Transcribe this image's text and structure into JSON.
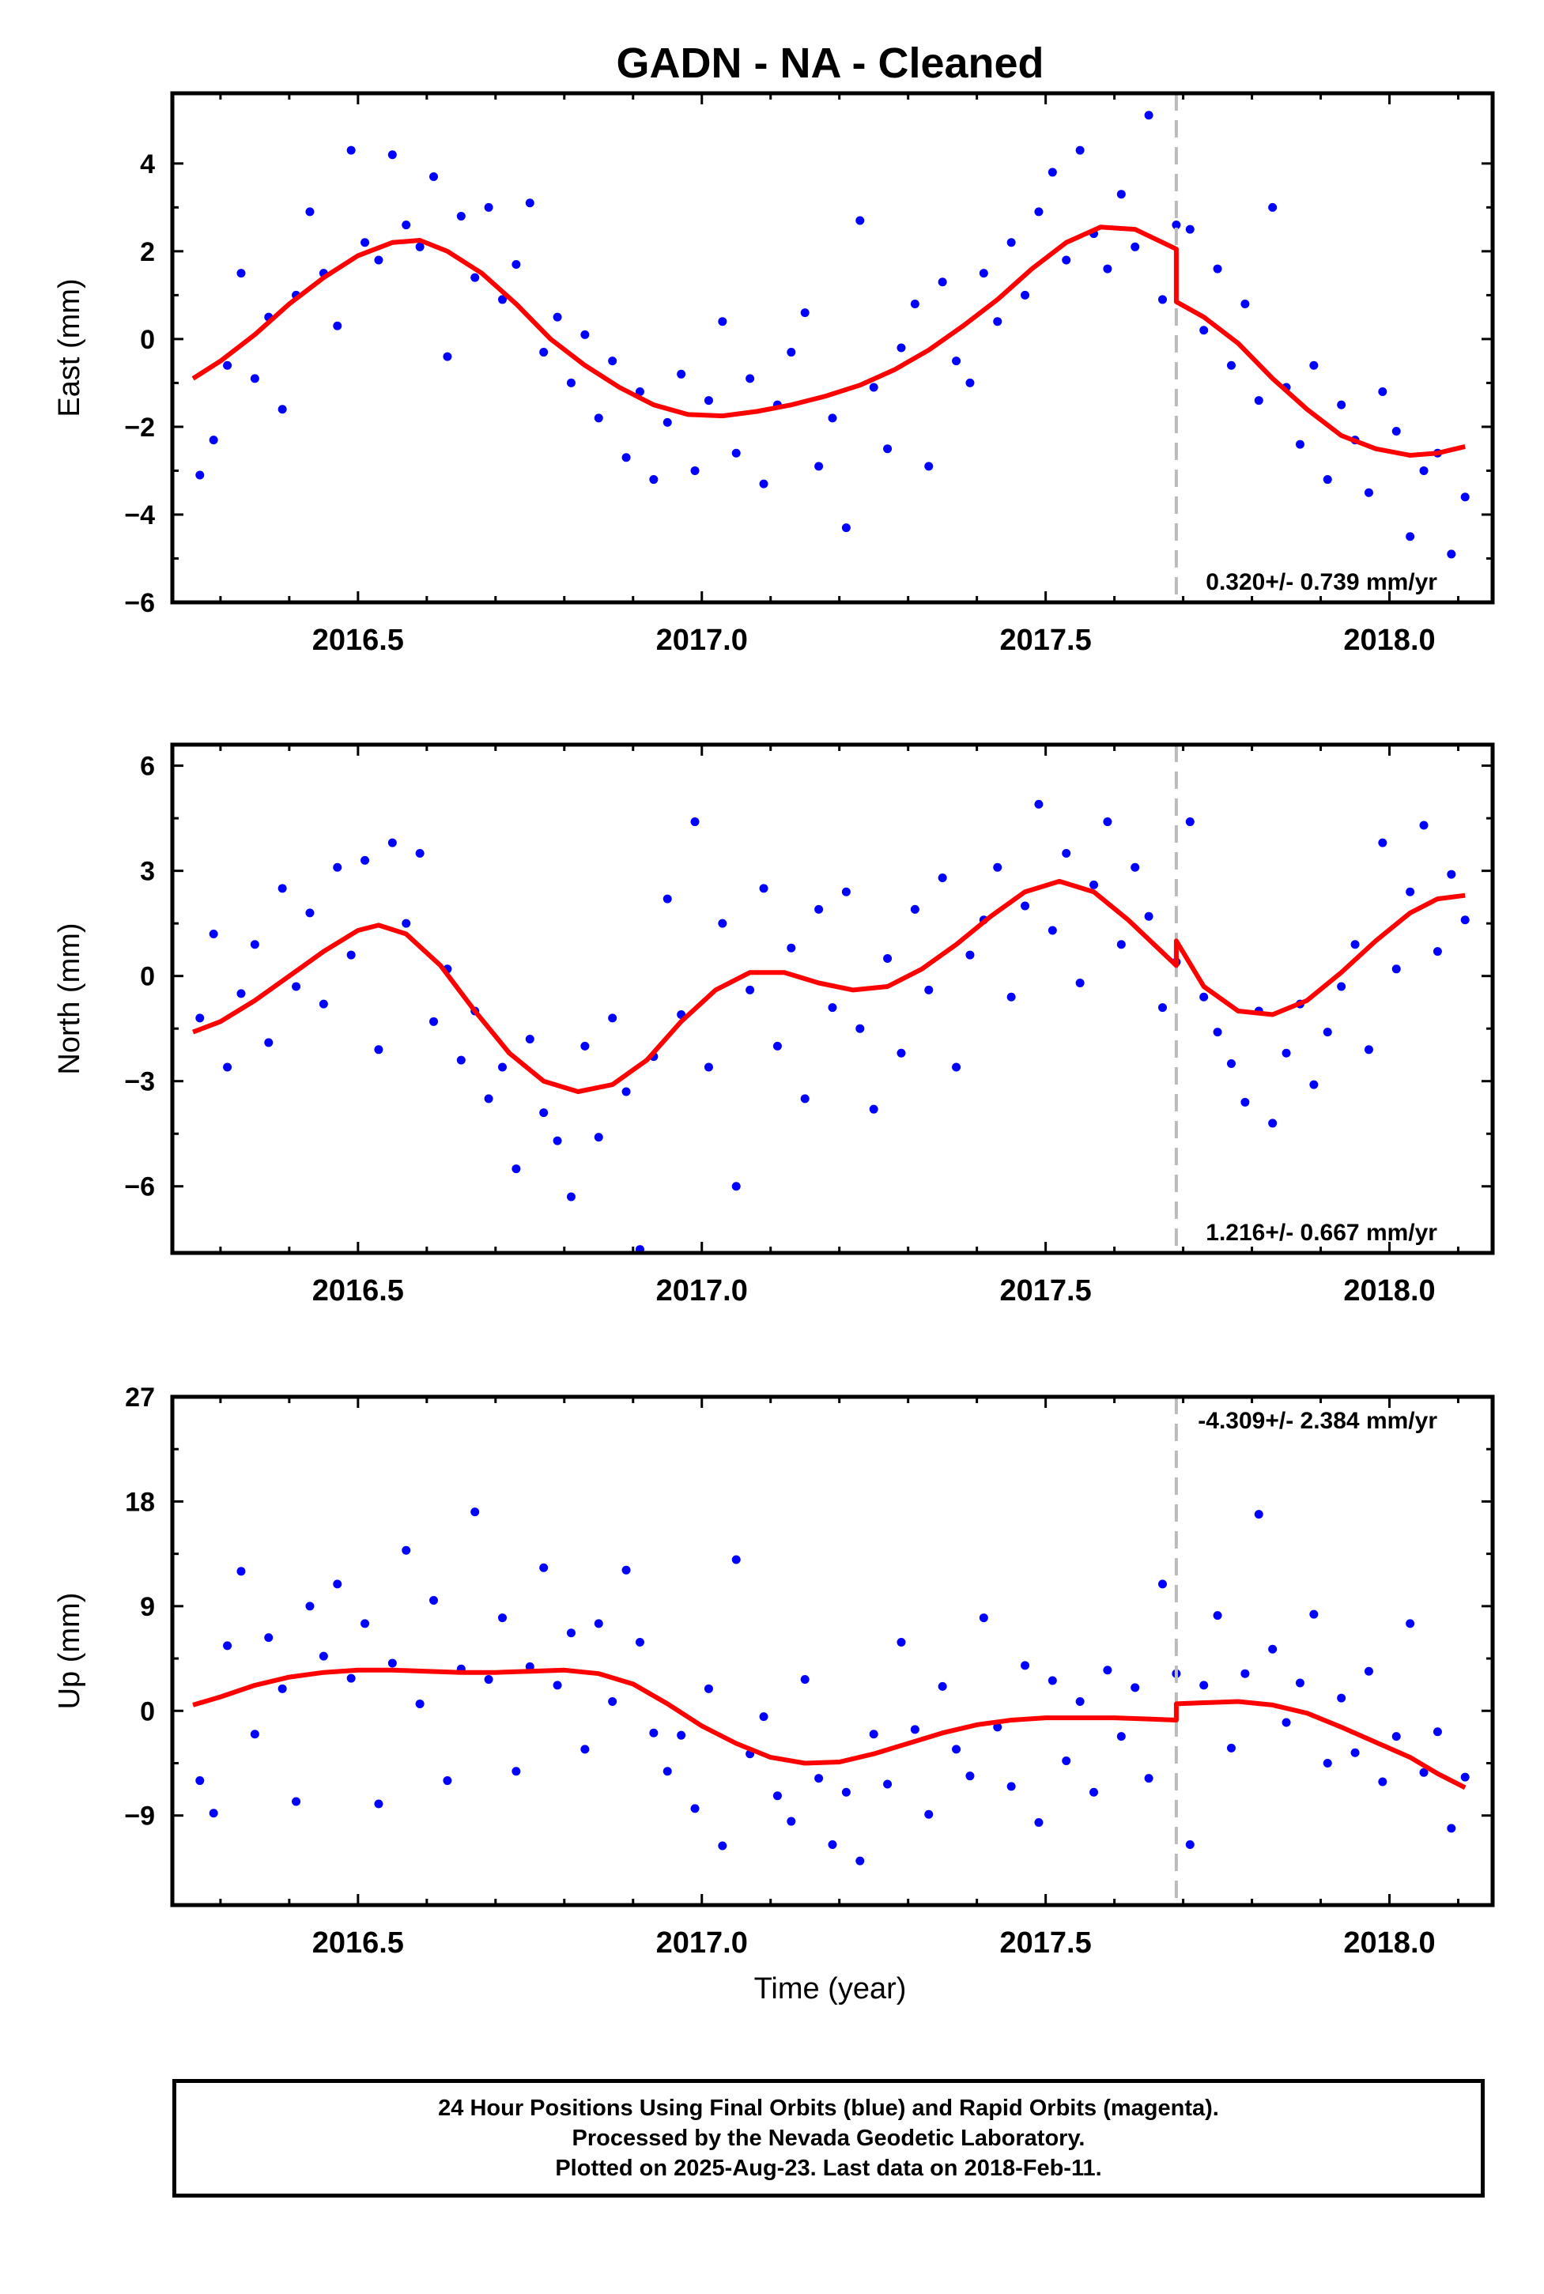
{
  "title": "GADN  - NA - Cleaned",
  "footer": {
    "line1": "24 Hour Positions Using Final Orbits (blue) and Rapid Orbits (magenta).",
    "line2": "Processed by the Nevada Geodetic Laboratory.",
    "line3": "Plotted on 2025-Aug-23. Last data on 2018-Feb-11."
  },
  "colors": {
    "points": "#0000ff",
    "fit": "#ff0000",
    "break_line": "#bbbbbb"
  },
  "chart_data": [
    {
      "type": "scatter",
      "ylabel": "East (mm)",
      "xlabel": "",
      "xlim": [
        2016.23,
        2018.15
      ],
      "ylim": [
        -6,
        5.6
      ],
      "xticks": [
        2016.5,
        2017.0,
        2017.5,
        2018.0
      ],
      "xtick_labels": [
        "2016.5",
        "2017.0",
        "2017.5",
        "2018.0"
      ],
      "yticks": [
        -6,
        -4,
        -2,
        0,
        2,
        4
      ],
      "ytick_labels": [
        "−6",
        "−4",
        "−2",
        "0",
        "2",
        "4"
      ],
      "rate_text": "0.320+/- 0.739 mm/yr",
      "rate_position": "bottom-right",
      "break_epoch": 2017.69,
      "fit": {
        "x": [
          2016.26,
          2016.3,
          2016.35,
          2016.4,
          2016.45,
          2016.5,
          2016.55,
          2016.59,
          2016.63,
          2016.68,
          2016.73,
          2016.78,
          2016.83,
          2016.88,
          2016.93,
          2016.98,
          2017.03,
          2017.08,
          2017.13,
          2017.18,
          2017.23,
          2017.28,
          2017.33,
          2017.38,
          2017.43,
          2017.48,
          2017.53,
          2017.58,
          2017.63,
          2017.69,
          2017.69,
          2017.73,
          2017.78,
          2017.83,
          2017.88,
          2017.93,
          2017.98,
          2018.03,
          2018.07,
          2018.11
        ],
        "y": [
          -0.9,
          -0.5,
          0.1,
          0.8,
          1.4,
          1.9,
          2.2,
          2.25,
          2.0,
          1.5,
          0.8,
          0.0,
          -0.6,
          -1.1,
          -1.5,
          -1.72,
          -1.75,
          -1.65,
          -1.5,
          -1.3,
          -1.05,
          -0.7,
          -0.25,
          0.3,
          0.9,
          1.6,
          2.2,
          2.55,
          2.5,
          2.05,
          0.85,
          0.5,
          -0.1,
          -0.9,
          -1.6,
          -2.2,
          -2.5,
          -2.65,
          -2.6,
          -2.45
        ]
      },
      "points": {
        "x": [
          2016.27,
          2016.29,
          2016.31,
          2016.33,
          2016.35,
          2016.37,
          2016.39,
          2016.41,
          2016.43,
          2016.45,
          2016.47,
          2016.49,
          2016.51,
          2016.53,
          2016.55,
          2016.57,
          2016.59,
          2016.61,
          2016.63,
          2016.65,
          2016.67,
          2016.69,
          2016.71,
          2016.73,
          2016.75,
          2016.77,
          2016.79,
          2016.81,
          2016.83,
          2016.85,
          2016.87,
          2016.89,
          2016.91,
          2016.93,
          2016.95,
          2016.97,
          2016.99,
          2017.01,
          2017.03,
          2017.05,
          2017.07,
          2017.09,
          2017.11,
          2017.13,
          2017.15,
          2017.17,
          2017.19,
          2017.21,
          2017.23,
          2017.25,
          2017.27,
          2017.29,
          2017.31,
          2017.33,
          2017.35,
          2017.37,
          2017.39,
          2017.41,
          2017.43,
          2017.45,
          2017.47,
          2017.49,
          2017.51,
          2017.53,
          2017.55,
          2017.57,
          2017.59,
          2017.61,
          2017.63,
          2017.65,
          2017.67,
          2017.69,
          2017.71,
          2017.73,
          2017.75,
          2017.77,
          2017.79,
          2017.81,
          2017.83,
          2017.85,
          2017.87,
          2017.89,
          2017.91,
          2017.93,
          2017.95,
          2017.97,
          2017.99,
          2018.01,
          2018.03,
          2018.05,
          2018.07,
          2018.09,
          2018.11
        ],
        "y": [
          -3.1,
          -2.3,
          -0.6,
          1.5,
          -0.9,
          0.5,
          -1.6,
          1.0,
          2.9,
          1.5,
          0.3,
          4.3,
          2.2,
          1.8,
          4.2,
          2.6,
          2.1,
          3.7,
          -0.4,
          2.8,
          1.4,
          3.0,
          0.9,
          1.7,
          3.1,
          -0.3,
          0.5,
          -1.0,
          0.1,
          -1.8,
          -0.5,
          -2.7,
          -1.2,
          -3.2,
          -1.9,
          -0.8,
          -3.0,
          -1.4,
          0.4,
          -2.6,
          -0.9,
          -3.3,
          -1.5,
          -0.3,
          0.6,
          -2.9,
          -1.8,
          -4.3,
          2.7,
          -1.1,
          -2.5,
          -0.2,
          0.8,
          -2.9,
          1.3,
          -0.5,
          -1.0,
          1.5,
          0.4,
          2.2,
          1.0,
          2.9,
          3.8,
          1.8,
          4.3,
          2.4,
          1.6,
          3.3,
          2.1,
          5.1,
          0.9,
          2.6,
          2.5,
          0.2,
          1.6,
          -0.6,
          0.8,
          -1.4,
          3.0,
          -1.1,
          -2.4,
          -0.6,
          -3.2,
          -1.5,
          -2.3,
          -3.5,
          -1.2,
          -2.1,
          -4.5,
          -3.0,
          -2.6,
          -4.9,
          -3.6
        ]
      }
    },
    {
      "type": "scatter",
      "ylabel": "North (mm)",
      "xlabel": "",
      "xlim": [
        2016.23,
        2018.15
      ],
      "ylim": [
        -7.9,
        6.6
      ],
      "xticks": [
        2016.5,
        2017.0,
        2017.5,
        2018.0
      ],
      "xtick_labels": [
        "2016.5",
        "2017.0",
        "2017.5",
        "2018.0"
      ],
      "yticks": [
        -6,
        -3,
        0,
        3,
        6
      ],
      "ytick_labels": [
        "−6",
        "−3",
        "0",
        "3",
        "6"
      ],
      "rate_text": "1.216+/- 0.667 mm/yr",
      "rate_position": "bottom-right",
      "break_epoch": 2017.69,
      "fit": {
        "x": [
          2016.26,
          2016.3,
          2016.35,
          2016.4,
          2016.45,
          2016.5,
          2016.53,
          2016.57,
          2016.62,
          2016.67,
          2016.72,
          2016.77,
          2016.82,
          2016.87,
          2016.92,
          2016.97,
          2017.02,
          2017.07,
          2017.12,
          2017.17,
          2017.22,
          2017.27,
          2017.32,
          2017.37,
          2017.42,
          2017.47,
          2017.52,
          2017.57,
          2017.62,
          2017.69,
          2017.69,
          2017.73,
          2017.78,
          2017.83,
          2017.88,
          2017.93,
          2017.98,
          2018.03,
          2018.07,
          2018.11
        ],
        "y": [
          -1.6,
          -1.3,
          -0.7,
          0.0,
          0.7,
          1.3,
          1.45,
          1.2,
          0.3,
          -1.0,
          -2.2,
          -3.0,
          -3.3,
          -3.1,
          -2.4,
          -1.3,
          -0.4,
          0.1,
          0.1,
          -0.2,
          -0.4,
          -0.3,
          0.2,
          0.9,
          1.7,
          2.4,
          2.7,
          2.4,
          1.6,
          0.3,
          1.0,
          -0.3,
          -1.0,
          -1.1,
          -0.7,
          0.1,
          1.0,
          1.8,
          2.2,
          2.3
        ]
      },
      "points": {
        "x": [
          2016.27,
          2016.29,
          2016.31,
          2016.33,
          2016.35,
          2016.37,
          2016.39,
          2016.41,
          2016.43,
          2016.45,
          2016.47,
          2016.49,
          2016.51,
          2016.53,
          2016.55,
          2016.57,
          2016.59,
          2016.61,
          2016.63,
          2016.65,
          2016.67,
          2016.69,
          2016.71,
          2016.73,
          2016.75,
          2016.77,
          2016.79,
          2016.81,
          2016.83,
          2016.85,
          2016.87,
          2016.89,
          2016.91,
          2016.93,
          2016.95,
          2016.97,
          2016.99,
          2017.01,
          2017.03,
          2017.05,
          2017.07,
          2017.09,
          2017.11,
          2017.13,
          2017.15,
          2017.17,
          2017.19,
          2017.21,
          2017.23,
          2017.25,
          2017.27,
          2017.29,
          2017.31,
          2017.33,
          2017.35,
          2017.37,
          2017.39,
          2017.41,
          2017.43,
          2017.45,
          2017.47,
          2017.49,
          2017.51,
          2017.53,
          2017.55,
          2017.57,
          2017.59,
          2017.61,
          2017.63,
          2017.65,
          2017.67,
          2017.69,
          2017.71,
          2017.73,
          2017.75,
          2017.77,
          2017.79,
          2017.81,
          2017.83,
          2017.85,
          2017.87,
          2017.89,
          2017.91,
          2017.93,
          2017.95,
          2017.97,
          2017.99,
          2018.01,
          2018.03,
          2018.05,
          2018.07,
          2018.09,
          2018.11
        ],
        "y": [
          -1.2,
          1.2,
          -2.6,
          -0.5,
          0.9,
          -1.9,
          2.5,
          -0.3,
          1.8,
          -0.8,
          3.1,
          0.6,
          3.3,
          -2.1,
          3.8,
          1.5,
          3.5,
          -1.3,
          0.2,
          -2.4,
          -1.0,
          -3.5,
          -2.6,
          -5.5,
          -1.8,
          -3.9,
          -4.7,
          -6.3,
          -2.0,
          -4.6,
          -1.2,
          -3.3,
          -7.8,
          -2.3,
          2.2,
          -1.1,
          4.4,
          -2.6,
          1.5,
          -6.0,
          -0.4,
          2.5,
          -2.0,
          0.8,
          -3.5,
          1.9,
          -0.9,
          2.4,
          -1.5,
          -3.8,
          0.5,
          -2.2,
          1.9,
          -0.4,
          2.8,
          -2.6,
          0.6,
          1.6,
          3.1,
          -0.6,
          2.0,
          4.9,
          1.3,
          3.5,
          -0.2,
          2.6,
          4.4,
          0.9,
          3.1,
          1.7,
          -0.9,
          0.4,
          4.4,
          -0.6,
          -1.6,
          -2.5,
          -3.6,
          -1.0,
          -4.2,
          -2.2,
          -0.8,
          -3.1,
          -1.6,
          -0.3,
          0.9,
          -2.1,
          3.8,
          0.2,
          2.4,
          4.3,
          0.7,
          2.9,
          1.6
        ]
      }
    },
    {
      "type": "scatter",
      "ylabel": "Up (mm)",
      "xlabel": "Time (year)",
      "xlim": [
        2016.23,
        2018.15
      ],
      "ylim": [
        -16.7,
        27
      ],
      "xticks": [
        2016.5,
        2017.0,
        2017.5,
        2018.0
      ],
      "xtick_labels": [
        "2016.5",
        "2017.0",
        "2017.5",
        "2018.0"
      ],
      "yticks": [
        -9,
        0,
        9,
        18,
        27
      ],
      "ytick_labels": [
        "−9",
        "0",
        "9",
        "18",
        "27"
      ],
      "rate_text": "-4.309+/- 2.384 mm/yr",
      "rate_position": "top-right",
      "break_epoch": 2017.69,
      "fit": {
        "x": [
          2016.26,
          2016.3,
          2016.35,
          2016.4,
          2016.45,
          2016.5,
          2016.55,
          2016.6,
          2016.65,
          2016.7,
          2016.75,
          2016.8,
          2016.85,
          2016.9,
          2016.95,
          2017.0,
          2017.05,
          2017.1,
          2017.15,
          2017.2,
          2017.25,
          2017.3,
          2017.35,
          2017.4,
          2017.45,
          2017.5,
          2017.55,
          2017.6,
          2017.65,
          2017.69,
          2017.69,
          2017.73,
          2017.78,
          2017.83,
          2017.88,
          2017.93,
          2017.98,
          2018.03,
          2018.07,
          2018.11
        ],
        "y": [
          0.5,
          1.2,
          2.2,
          2.9,
          3.3,
          3.5,
          3.5,
          3.4,
          3.3,
          3.3,
          3.4,
          3.5,
          3.2,
          2.3,
          0.6,
          -1.3,
          -2.8,
          -4.0,
          -4.5,
          -4.4,
          -3.7,
          -2.8,
          -1.9,
          -1.2,
          -0.8,
          -0.6,
          -0.6,
          -0.6,
          -0.7,
          -0.8,
          0.6,
          0.7,
          0.8,
          0.5,
          -0.2,
          -1.4,
          -2.7,
          -4.0,
          -5.4,
          -6.6
        ]
      },
      "points": {
        "x": [
          2016.27,
          2016.29,
          2016.31,
          2016.33,
          2016.35,
          2016.37,
          2016.39,
          2016.41,
          2016.43,
          2016.45,
          2016.47,
          2016.49,
          2016.51,
          2016.53,
          2016.55,
          2016.57,
          2016.59,
          2016.61,
          2016.63,
          2016.65,
          2016.67,
          2016.69,
          2016.71,
          2016.73,
          2016.75,
          2016.77,
          2016.79,
          2016.81,
          2016.83,
          2016.85,
          2016.87,
          2016.89,
          2016.91,
          2016.93,
          2016.95,
          2016.97,
          2016.99,
          2017.01,
          2017.03,
          2017.05,
          2017.07,
          2017.09,
          2017.11,
          2017.13,
          2017.15,
          2017.17,
          2017.19,
          2017.21,
          2017.23,
          2017.25,
          2017.27,
          2017.29,
          2017.31,
          2017.33,
          2017.35,
          2017.37,
          2017.39,
          2017.41,
          2017.43,
          2017.45,
          2017.47,
          2017.49,
          2017.51,
          2017.53,
          2017.55,
          2017.57,
          2017.59,
          2017.61,
          2017.63,
          2017.65,
          2017.67,
          2017.69,
          2017.71,
          2017.73,
          2017.75,
          2017.77,
          2017.79,
          2017.81,
          2017.83,
          2017.85,
          2017.87,
          2017.89,
          2017.91,
          2017.93,
          2017.95,
          2017.97,
          2017.99,
          2018.01,
          2018.03,
          2018.05,
          2018.07,
          2018.09,
          2018.11
        ],
        "y": [
          -6.0,
          -8.8,
          5.6,
          12.0,
          -2.0,
          6.3,
          1.9,
          -7.8,
          9.0,
          4.7,
          10.9,
          2.8,
          7.5,
          -8.0,
          4.1,
          13.8,
          0.6,
          9.5,
          -6.0,
          3.6,
          17.1,
          2.7,
          8.0,
          -5.2,
          3.8,
          12.3,
          2.2,
          6.7,
          -3.3,
          7.5,
          0.8,
          12.1,
          5.9,
          -1.9,
          -5.2,
          -2.1,
          -8.4,
          1.9,
          -11.6,
          13.0,
          -3.7,
          -0.5,
          -7.3,
          -9.5,
          2.7,
          -5.8,
          -11.5,
          -7.0,
          -12.9,
          -2.0,
          -6.3,
          5.9,
          -1.6,
          -8.9,
          2.1,
          -3.3,
          -5.6,
          8.0,
          -1.4,
          -6.5,
          3.9,
          -9.6,
          2.6,
          -4.3,
          0.8,
          -7.0,
          3.5,
          -2.2,
          2.0,
          -5.8,
          10.9,
          3.2,
          -11.5,
          2.2,
          8.2,
          -3.2,
          3.2,
          16.9,
          5.3,
          -1.0,
          2.4,
          8.3,
          -4.5,
          1.1,
          -3.6,
          3.4,
          -6.1,
          -2.2,
          7.5,
          -5.3,
          -1.8,
          -10.1,
          -5.7
        ]
      }
    }
  ]
}
